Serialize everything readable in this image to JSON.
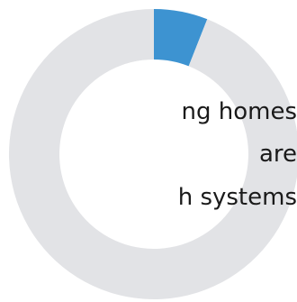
{
  "chart_data": {
    "type": "pie",
    "style": "donut",
    "slices": [
      {
        "label": "",
        "value": 6,
        "color": "#3d93d1"
      },
      {
        "label": "",
        "value": 94,
        "color": "#e2e3e6"
      }
    ],
    "labels": [
      "ng homes",
      "are",
      "h systems"
    ]
  }
}
